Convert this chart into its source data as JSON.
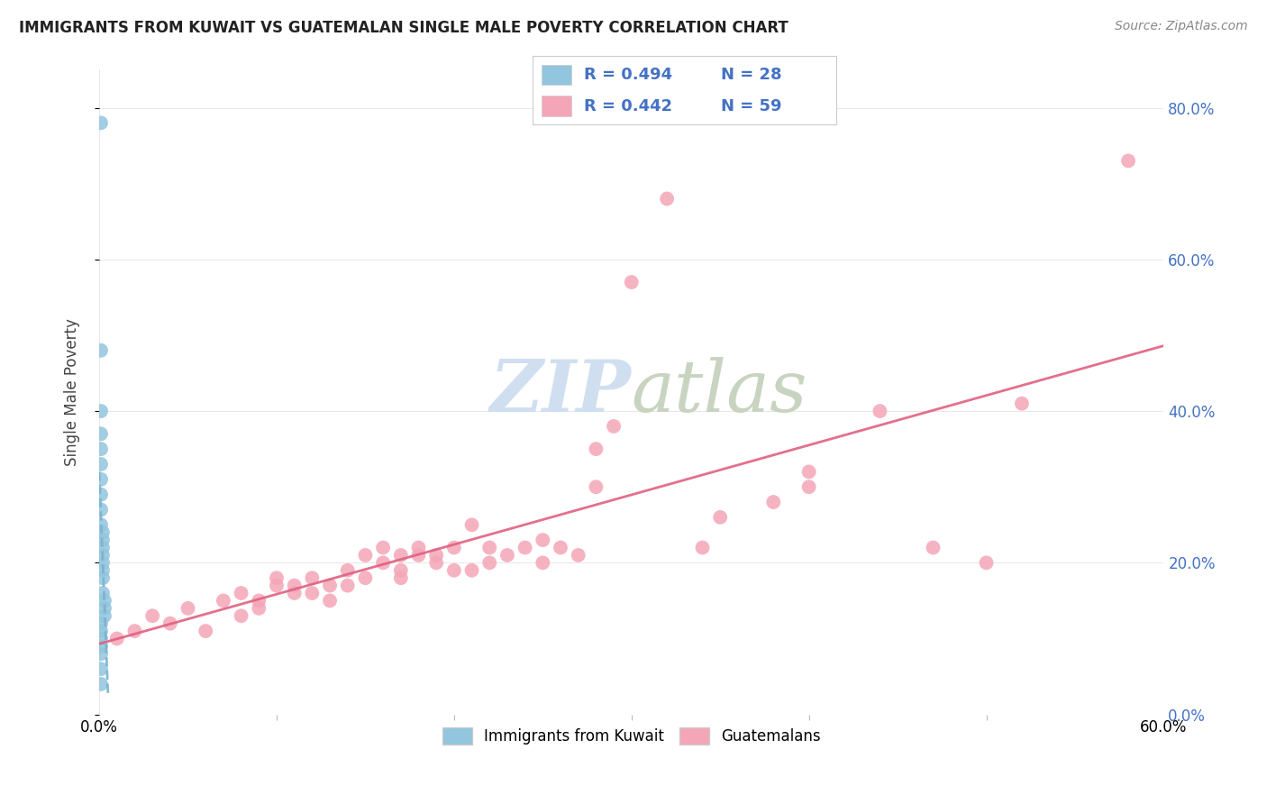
{
  "title": "IMMIGRANTS FROM KUWAIT VS GUATEMALAN SINGLE MALE POVERTY CORRELATION CHART",
  "source": "Source: ZipAtlas.com",
  "ylabel": "Single Male Poverty",
  "legend_label1": "Immigrants from Kuwait",
  "legend_label2": "Guatemalans",
  "r1": 0.494,
  "n1": 28,
  "r2": 0.442,
  "n2": 59,
  "color1": "#92c5de",
  "color2": "#f4a6b8",
  "line1_color": "#7ab3d0",
  "line2_color": "#e06080",
  "title_color": "#222222",
  "stat_color": "#4472c4",
  "watermark_color": "#d0dff0",
  "xmin": 0.0,
  "xmax": 0.6,
  "ymin": 0.0,
  "ymax": 0.85,
  "yticks": [
    0.0,
    0.2,
    0.4,
    0.6,
    0.8
  ],
  "kuwait_x": [
    0.001,
    0.001,
    0.001,
    0.001,
    0.001,
    0.001,
    0.001,
    0.001,
    0.001,
    0.001,
    0.002,
    0.002,
    0.002,
    0.002,
    0.002,
    0.002,
    0.002,
    0.002,
    0.003,
    0.003,
    0.003,
    0.001,
    0.001,
    0.001,
    0.001,
    0.001,
    0.001,
    0.001
  ],
  "kuwait_y": [
    0.78,
    0.48,
    0.4,
    0.37,
    0.35,
    0.33,
    0.31,
    0.29,
    0.27,
    0.25,
    0.24,
    0.23,
    0.22,
    0.21,
    0.2,
    0.19,
    0.18,
    0.16,
    0.15,
    0.14,
    0.13,
    0.12,
    0.11,
    0.1,
    0.09,
    0.08,
    0.06,
    0.04
  ],
  "guatemalan_x": [
    0.58,
    0.52,
    0.44,
    0.4,
    0.4,
    0.38,
    0.35,
    0.34,
    0.32,
    0.3,
    0.29,
    0.28,
    0.27,
    0.26,
    0.25,
    0.25,
    0.24,
    0.23,
    0.22,
    0.22,
    0.21,
    0.21,
    0.2,
    0.2,
    0.19,
    0.19,
    0.18,
    0.18,
    0.17,
    0.17,
    0.17,
    0.16,
    0.16,
    0.15,
    0.15,
    0.14,
    0.14,
    0.13,
    0.13,
    0.12,
    0.12,
    0.11,
    0.11,
    0.1,
    0.1,
    0.09,
    0.09,
    0.08,
    0.08,
    0.07,
    0.06,
    0.05,
    0.04,
    0.03,
    0.02,
    0.01,
    0.47,
    0.5,
    0.28
  ],
  "guatemalan_y": [
    0.73,
    0.41,
    0.4,
    0.32,
    0.3,
    0.28,
    0.26,
    0.22,
    0.68,
    0.57,
    0.38,
    0.3,
    0.21,
    0.22,
    0.23,
    0.2,
    0.22,
    0.21,
    0.22,
    0.2,
    0.25,
    0.19,
    0.22,
    0.19,
    0.21,
    0.2,
    0.21,
    0.22,
    0.21,
    0.19,
    0.18,
    0.22,
    0.2,
    0.21,
    0.18,
    0.17,
    0.19,
    0.17,
    0.15,
    0.18,
    0.16,
    0.17,
    0.16,
    0.17,
    0.18,
    0.15,
    0.14,
    0.16,
    0.13,
    0.15,
    0.11,
    0.14,
    0.12,
    0.13,
    0.11,
    0.1,
    0.22,
    0.2,
    0.35
  ]
}
